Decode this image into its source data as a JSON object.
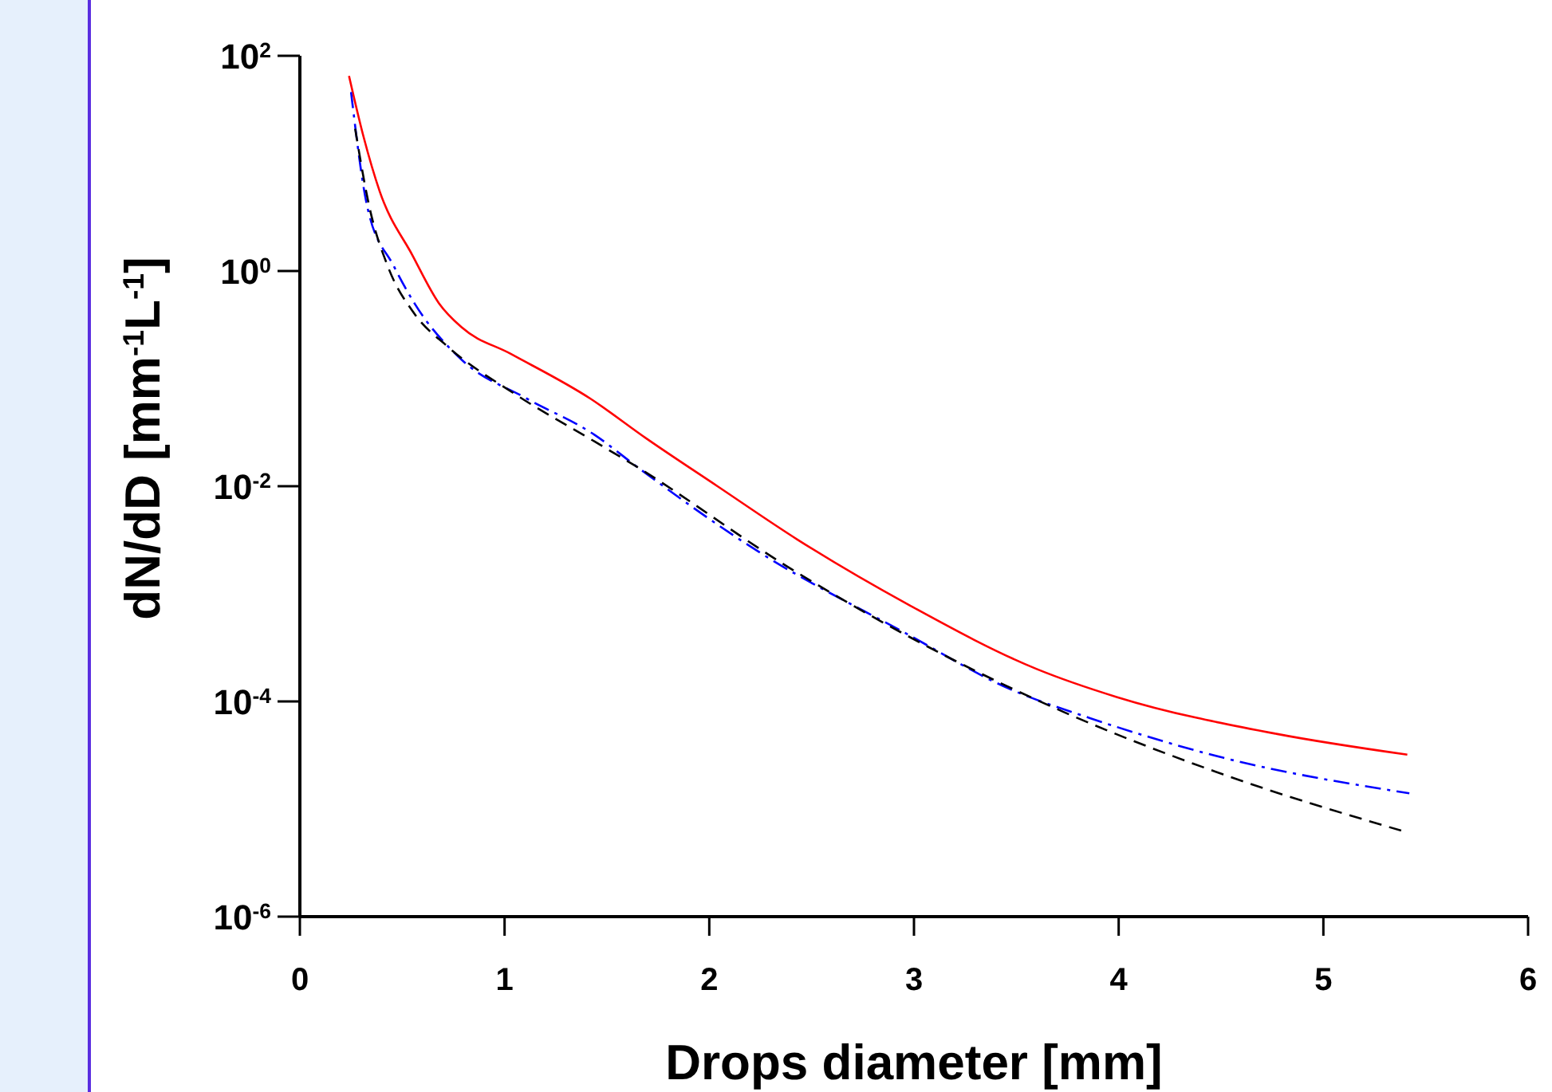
{
  "chart_data": {
    "type": "line",
    "xlabel": "Drops diameter [mm]",
    "ylabel": "dN/dD [mm$^{-1}$L$^{-1}$]",
    "log": "y",
    "xlim": [
      0,
      6
    ],
    "xticks": [
      0,
      1,
      2,
      3,
      4,
      5,
      6
    ],
    "ylim": [
      1e-06,
      100
    ],
    "yticks": [
      {
        "value": 100,
        "label": "10$^{2}$"
      },
      {
        "value": 1,
        "label": "10$^{0}$"
      },
      {
        "value": 0.01,
        "label": "10$^{-2}$"
      },
      {
        "value": 0.0001,
        "label": "10$^{-4}$"
      },
      {
        "value": 1e-06,
        "label": "10$^{-6}$"
      }
    ],
    "grid": false,
    "series": [
      {
        "color": "#ff0000",
        "line_style": "solid",
        "x": [
          0.24,
          0.31,
          0.39,
          0.55,
          0.68,
          0.79,
          1.03,
          1.42,
          1.69,
          2.04,
          2.43,
          2.98,
          3.6,
          3.99,
          4.77,
          5.41
        ],
        "values": [
          65,
          18,
          5.5,
          1.4,
          0.5,
          0.3,
          0.17,
          0.065,
          0.028,
          0.01,
          0.0032,
          0.00078,
          0.0002,
          0.00011,
          5e-05,
          3.2e-05
        ]
      },
      {
        "color": "#0000ff",
        "line_style": "dashdot",
        "x": [
          0.25,
          0.33,
          0.46,
          0.56,
          0.79,
          1.11,
          1.44,
          1.65,
          2.25,
          2.95,
          3.47,
          3.86,
          4.51,
          5.42
        ],
        "values": [
          46,
          3.9,
          1.1,
          0.5,
          0.15,
          0.065,
          0.03,
          0.015,
          0.0024,
          0.00044,
          0.00013,
          7e-05,
          3e-05,
          1.4e-05
        ]
      },
      {
        "color": "#000000",
        "line_style": "dashed",
        "x": [
          0.27,
          0.34,
          0.43,
          0.56,
          0.72,
          1.05,
          1.44,
          1.65,
          2.38,
          3.13,
          3.73,
          4.51,
          5.38
        ],
        "values": [
          21,
          3.9,
          1.1,
          0.4,
          0.2,
          0.072,
          0.026,
          0.015,
          0.0018,
          0.00028,
          8e-05,
          2.1e-05,
          6.3e-06
        ]
      }
    ]
  }
}
